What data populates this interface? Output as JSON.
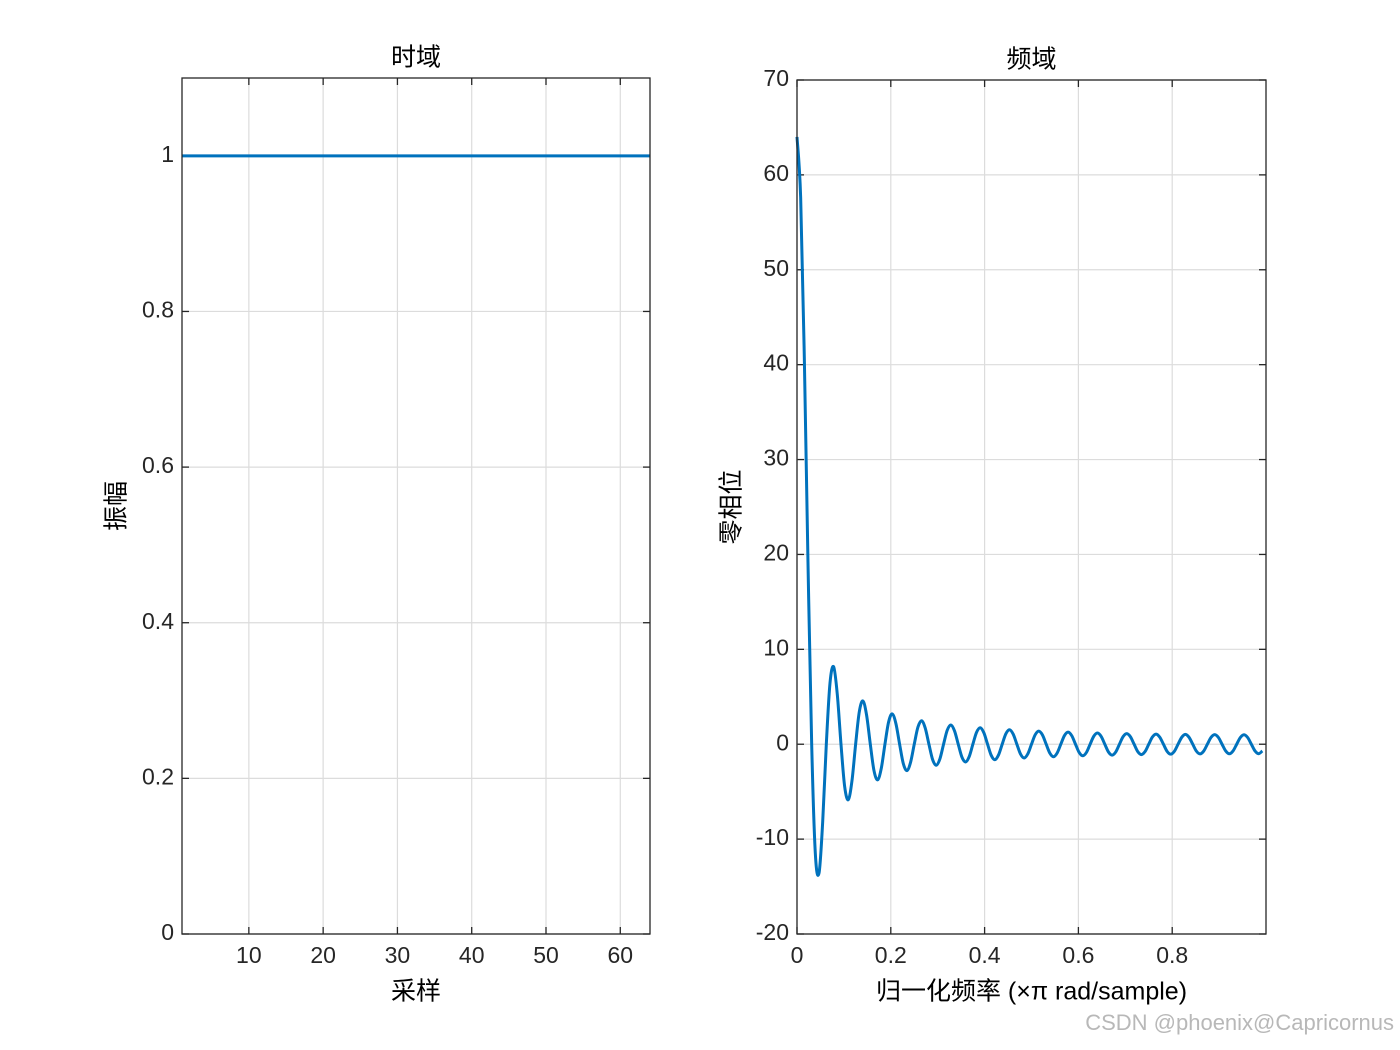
{
  "chart_data": [
    {
      "type": "line",
      "title": "时域",
      "xlabel": "采样",
      "ylabel": "振幅",
      "grid": true,
      "x": [
        1,
        64
      ],
      "series": [
        {
          "color": "#0072bd",
          "values": [
            1,
            1
          ]
        }
      ],
      "xlim": [
        1,
        64
      ],
      "xticks": [
        10,
        20,
        30,
        40,
        50,
        60
      ],
      "ylim": [
        0,
        1.1
      ],
      "yticks": [
        0,
        0.2,
        0.4,
        0.6,
        0.8,
        1
      ]
    },
    {
      "type": "line",
      "title": "频域",
      "xlabel": "归一化频率  (×π rad/sample)",
      "ylabel": "零相位",
      "grid": true,
      "x": [
        0,
        0.0078,
        0.0156,
        0.0234,
        0.0313,
        0.0391,
        0.0469,
        0.0547,
        0.0625,
        0.0703,
        0.0781,
        0.0859,
        0.0938,
        0.1016,
        0.1094,
        0.1172,
        0.125,
        0.1328,
        0.1406,
        0.1484,
        0.1563,
        0.1641,
        0.1719,
        0.1797,
        0.1875,
        0.1953,
        0.2031,
        0.2109,
        0.2188,
        0.2266,
        0.2344,
        0.2422,
        0.25,
        0.2578,
        0.2656,
        0.2734,
        0.2813,
        0.2891,
        0.2969,
        0.3047,
        0.3125,
        0.3203,
        0.3281,
        0.3359,
        0.3438,
        0.3516,
        0.3594,
        0.3672,
        0.375,
        0.3828,
        0.3906,
        0.3984,
        0.4063,
        0.4141,
        0.4219,
        0.4297,
        0.4375,
        0.4453,
        0.4531,
        0.4609,
        0.4688,
        0.4766,
        0.4844,
        0.4922,
        0.5,
        0.5078,
        0.5156,
        0.5234,
        0.5313,
        0.5391,
        0.5469,
        0.5547,
        0.5625,
        0.5703,
        0.5781,
        0.5859,
        0.5938,
        0.6016,
        0.6094,
        0.6172,
        0.625,
        0.6328,
        0.6406,
        0.6484,
        0.6563,
        0.6641,
        0.6719,
        0.6797,
        0.6875,
        0.6953,
        0.7031,
        0.7109,
        0.7188,
        0.7266,
        0.7344,
        0.7422,
        0.75,
        0.7578,
        0.7656,
        0.7734,
        0.7813,
        0.7891,
        0.7969,
        0.8047,
        0.8125,
        0.8203,
        0.8281,
        0.8359,
        0.8438,
        0.8516,
        0.8594,
        0.8672,
        0.875,
        0.8828,
        0.8906,
        0.8984,
        0.9063,
        0.9141,
        0.9219,
        0.9297,
        0.9375,
        0.9453,
        0.9531,
        0.9609,
        0.9688,
        0.9766,
        0.9844,
        0.9922
      ],
      "series": [
        {
          "color": "#0072bd",
          "values": [
            64,
            57.62,
            40.75,
            19.21,
            0,
            -11.53,
            -13.59,
            -8.24,
            0,
            6.42,
            8.17,
            5.25,
            0,
            -4.45,
            -5.85,
            -3.86,
            0,
            3.41,
            4.56,
            3.06,
            0,
            -2.77,
            -3.75,
            -2.54,
            0,
            2.34,
            3.19,
            2.17,
            0,
            -2.03,
            -2.78,
            -1.9,
            0,
            1.79,
            2.47,
            1.7,
            0,
            -1.61,
            -2.22,
            -1.54,
            0,
            1.47,
            2.03,
            1.4,
            0,
            -1.35,
            -1.87,
            -1.3,
            0,
            1.25,
            1.74,
            1.21,
            0,
            -1.17,
            -1.63,
            -1.13,
            0,
            1.1,
            1.53,
            1.07,
            0,
            -1.04,
            -1.45,
            -1.01,
            0,
            0.99,
            1.38,
            0.97,
            0,
            -0.94,
            -1.32,
            -0.92,
            0,
            0.91,
            1.27,
            0.89,
            0,
            -0.87,
            -1.22,
            -0.86,
            0,
            0.84,
            1.18,
            0.83,
            0,
            -0.82,
            -1.15,
            -0.81,
            0,
            0.8,
            1.12,
            0.79,
            0,
            -0.78,
            -1.09,
            -0.77,
            0,
            0.76,
            1.07,
            0.75,
            0,
            -0.75,
            -1.05,
            -0.74,
            0,
            0.73,
            1.04,
            0.73,
            0,
            -0.73,
            -1.02,
            -0.72,
            0,
            0.72,
            1.01,
            0.72,
            0,
            -0.71,
            -1.01,
            -0.71,
            0,
            0.71,
            1,
            0.71,
            0,
            -0.71,
            -1,
            -0.71
          ]
        }
      ],
      "xlim": [
        0,
        1
      ],
      "xticks": [
        0,
        0.2,
        0.4,
        0.6,
        0.8
      ],
      "ylim": [
        -20,
        70
      ],
      "yticks": [
        -20,
        -10,
        0,
        10,
        20,
        30,
        40,
        50,
        60,
        70
      ]
    }
  ],
  "watermark": "CSDN @phoenix@Capricornus"
}
